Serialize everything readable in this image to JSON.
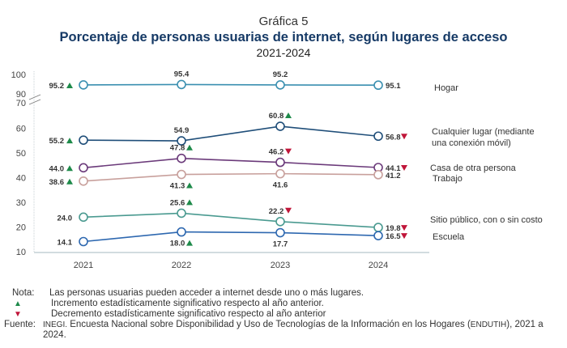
{
  "header": {
    "label": "Gráfica 5",
    "title": "Porcentaje de personas usuarias de internet, según lugares de acceso",
    "subtitle": "2021-2024"
  },
  "chart_data": {
    "type": "line",
    "title": "Porcentaje de personas usuarias de internet, según lugares de acceso",
    "subtitle": "2021-2024",
    "xlabel": "",
    "ylabel": "",
    "x": [
      "2021",
      "2022",
      "2023",
      "2024"
    ],
    "yticks": [
      10,
      20,
      30,
      40,
      50,
      60,
      70,
      90,
      100
    ],
    "ylim": [
      10,
      100
    ],
    "axis_break": [
      70,
      90
    ],
    "grid": false,
    "legend": "right (labels at line ends)",
    "series": [
      {
        "name": "Hogar",
        "color": "#3a8fb0",
        "values": [
          95.2,
          95.4,
          95.2,
          95.1
        ],
        "labels": [
          "95.2",
          "95.4",
          "95.2",
          "95.1"
        ],
        "signif": [
          "up",
          "",
          "",
          ""
        ],
        "label_pos": [
          "left",
          "above",
          "above",
          "right"
        ]
      },
      {
        "name": "Cualquier lugar (mediante una conexión móvil)",
        "color": "#1f4e79",
        "values": [
          55.2,
          54.9,
          60.8,
          56.8
        ],
        "labels": [
          "55.2",
          "54.9",
          "60.8",
          "56.8"
        ],
        "signif": [
          "up",
          "",
          "up",
          "down"
        ],
        "label_pos": [
          "left",
          "above",
          "above",
          "right"
        ]
      },
      {
        "name": "Casa de otra persona",
        "color": "#6b3a7a",
        "values": [
          44.0,
          47.8,
          46.2,
          44.1
        ],
        "labels": [
          "44.0",
          "47.8",
          "46.2",
          "44.1"
        ],
        "signif": [
          "up",
          "up",
          "down",
          "down"
        ],
        "label_pos": [
          "left",
          "above",
          "above",
          "right"
        ]
      },
      {
        "name": "Trabajo",
        "color": "#c8a09c",
        "values": [
          38.6,
          41.3,
          41.6,
          41.2
        ],
        "labels": [
          "38.6",
          "41.3",
          "41.6",
          "41.2"
        ],
        "signif": [
          "up",
          "up",
          "",
          ""
        ],
        "label_pos": [
          "left",
          "below",
          "below",
          "right"
        ]
      },
      {
        "name": "Sitio público, con o sin costo",
        "color": "#4a9a90",
        "values": [
          24.0,
          25.6,
          22.2,
          19.8
        ],
        "labels": [
          "24.0",
          "25.6",
          "22.2",
          "19.8"
        ],
        "signif": [
          "",
          "up",
          "down",
          "down"
        ],
        "label_pos": [
          "left",
          "above",
          "above",
          "right"
        ]
      },
      {
        "name": "Escuela",
        "color": "#2e68b0",
        "values": [
          14.1,
          18.0,
          17.7,
          16.5
        ],
        "labels": [
          "14.1",
          "18.0",
          "17.7",
          "16.5"
        ],
        "signif": [
          "",
          "up",
          "",
          "down"
        ],
        "label_pos": [
          "left",
          "below",
          "below",
          "right"
        ]
      }
    ],
    "markers": {
      "up_color": "#1e8a4a",
      "down_color": "#c0163a"
    }
  },
  "notes": {
    "nota_label": "Nota:",
    "nota_text": "Las personas usuarias pueden acceder a internet desde uno o más lugares.",
    "up_symbol": "▲",
    "up_text": "Incremento estadísticamente significativo respecto al año anterior.",
    "down_symbol": "▼",
    "down_text": "Decremento estadísticamente significativo respecto al año anterior",
    "fuente_label": "Fuente:",
    "fuente_org": "INEGI.",
    "fuente_text_1": "Encuesta Nacional sobre Disponibilidad y Uso de Tecnologías de la Información en los Hogares (",
    "fuente_acronym": "ENDUTIH",
    "fuente_text_2": "), 2021 a 2024."
  }
}
